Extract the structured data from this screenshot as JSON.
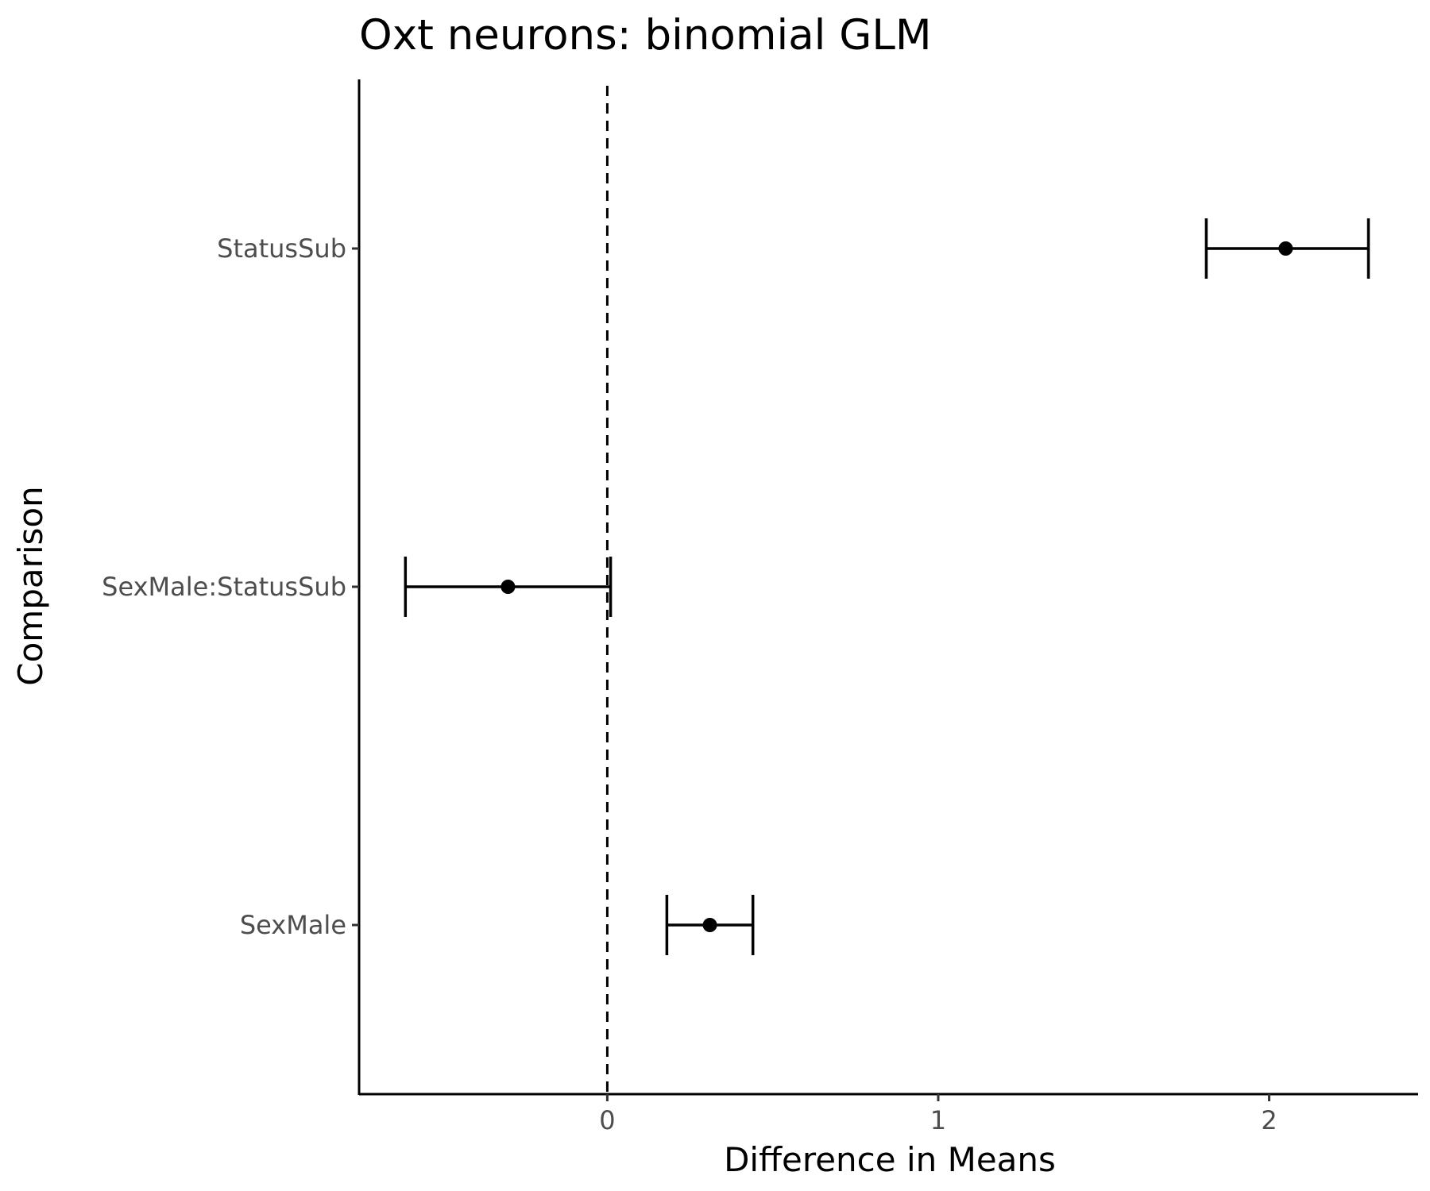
{
  "chart_data": {
    "type": "forest",
    "title": "Oxt neurons: binomial GLM",
    "xlabel": "Difference in Means",
    "ylabel": "Comparison",
    "xlim": [
      -0.75,
      2.45
    ],
    "xticks": [
      "0",
      "1",
      "2"
    ],
    "reference_line": 0,
    "grid": false,
    "categories": [
      "StatusSub",
      "SexMale:StatusSub",
      "SexMale"
    ],
    "estimates": [
      2.05,
      -0.3,
      0.31
    ],
    "lower": [
      1.81,
      -0.61,
      0.18
    ],
    "upper": [
      2.3,
      0.01,
      0.44
    ]
  }
}
